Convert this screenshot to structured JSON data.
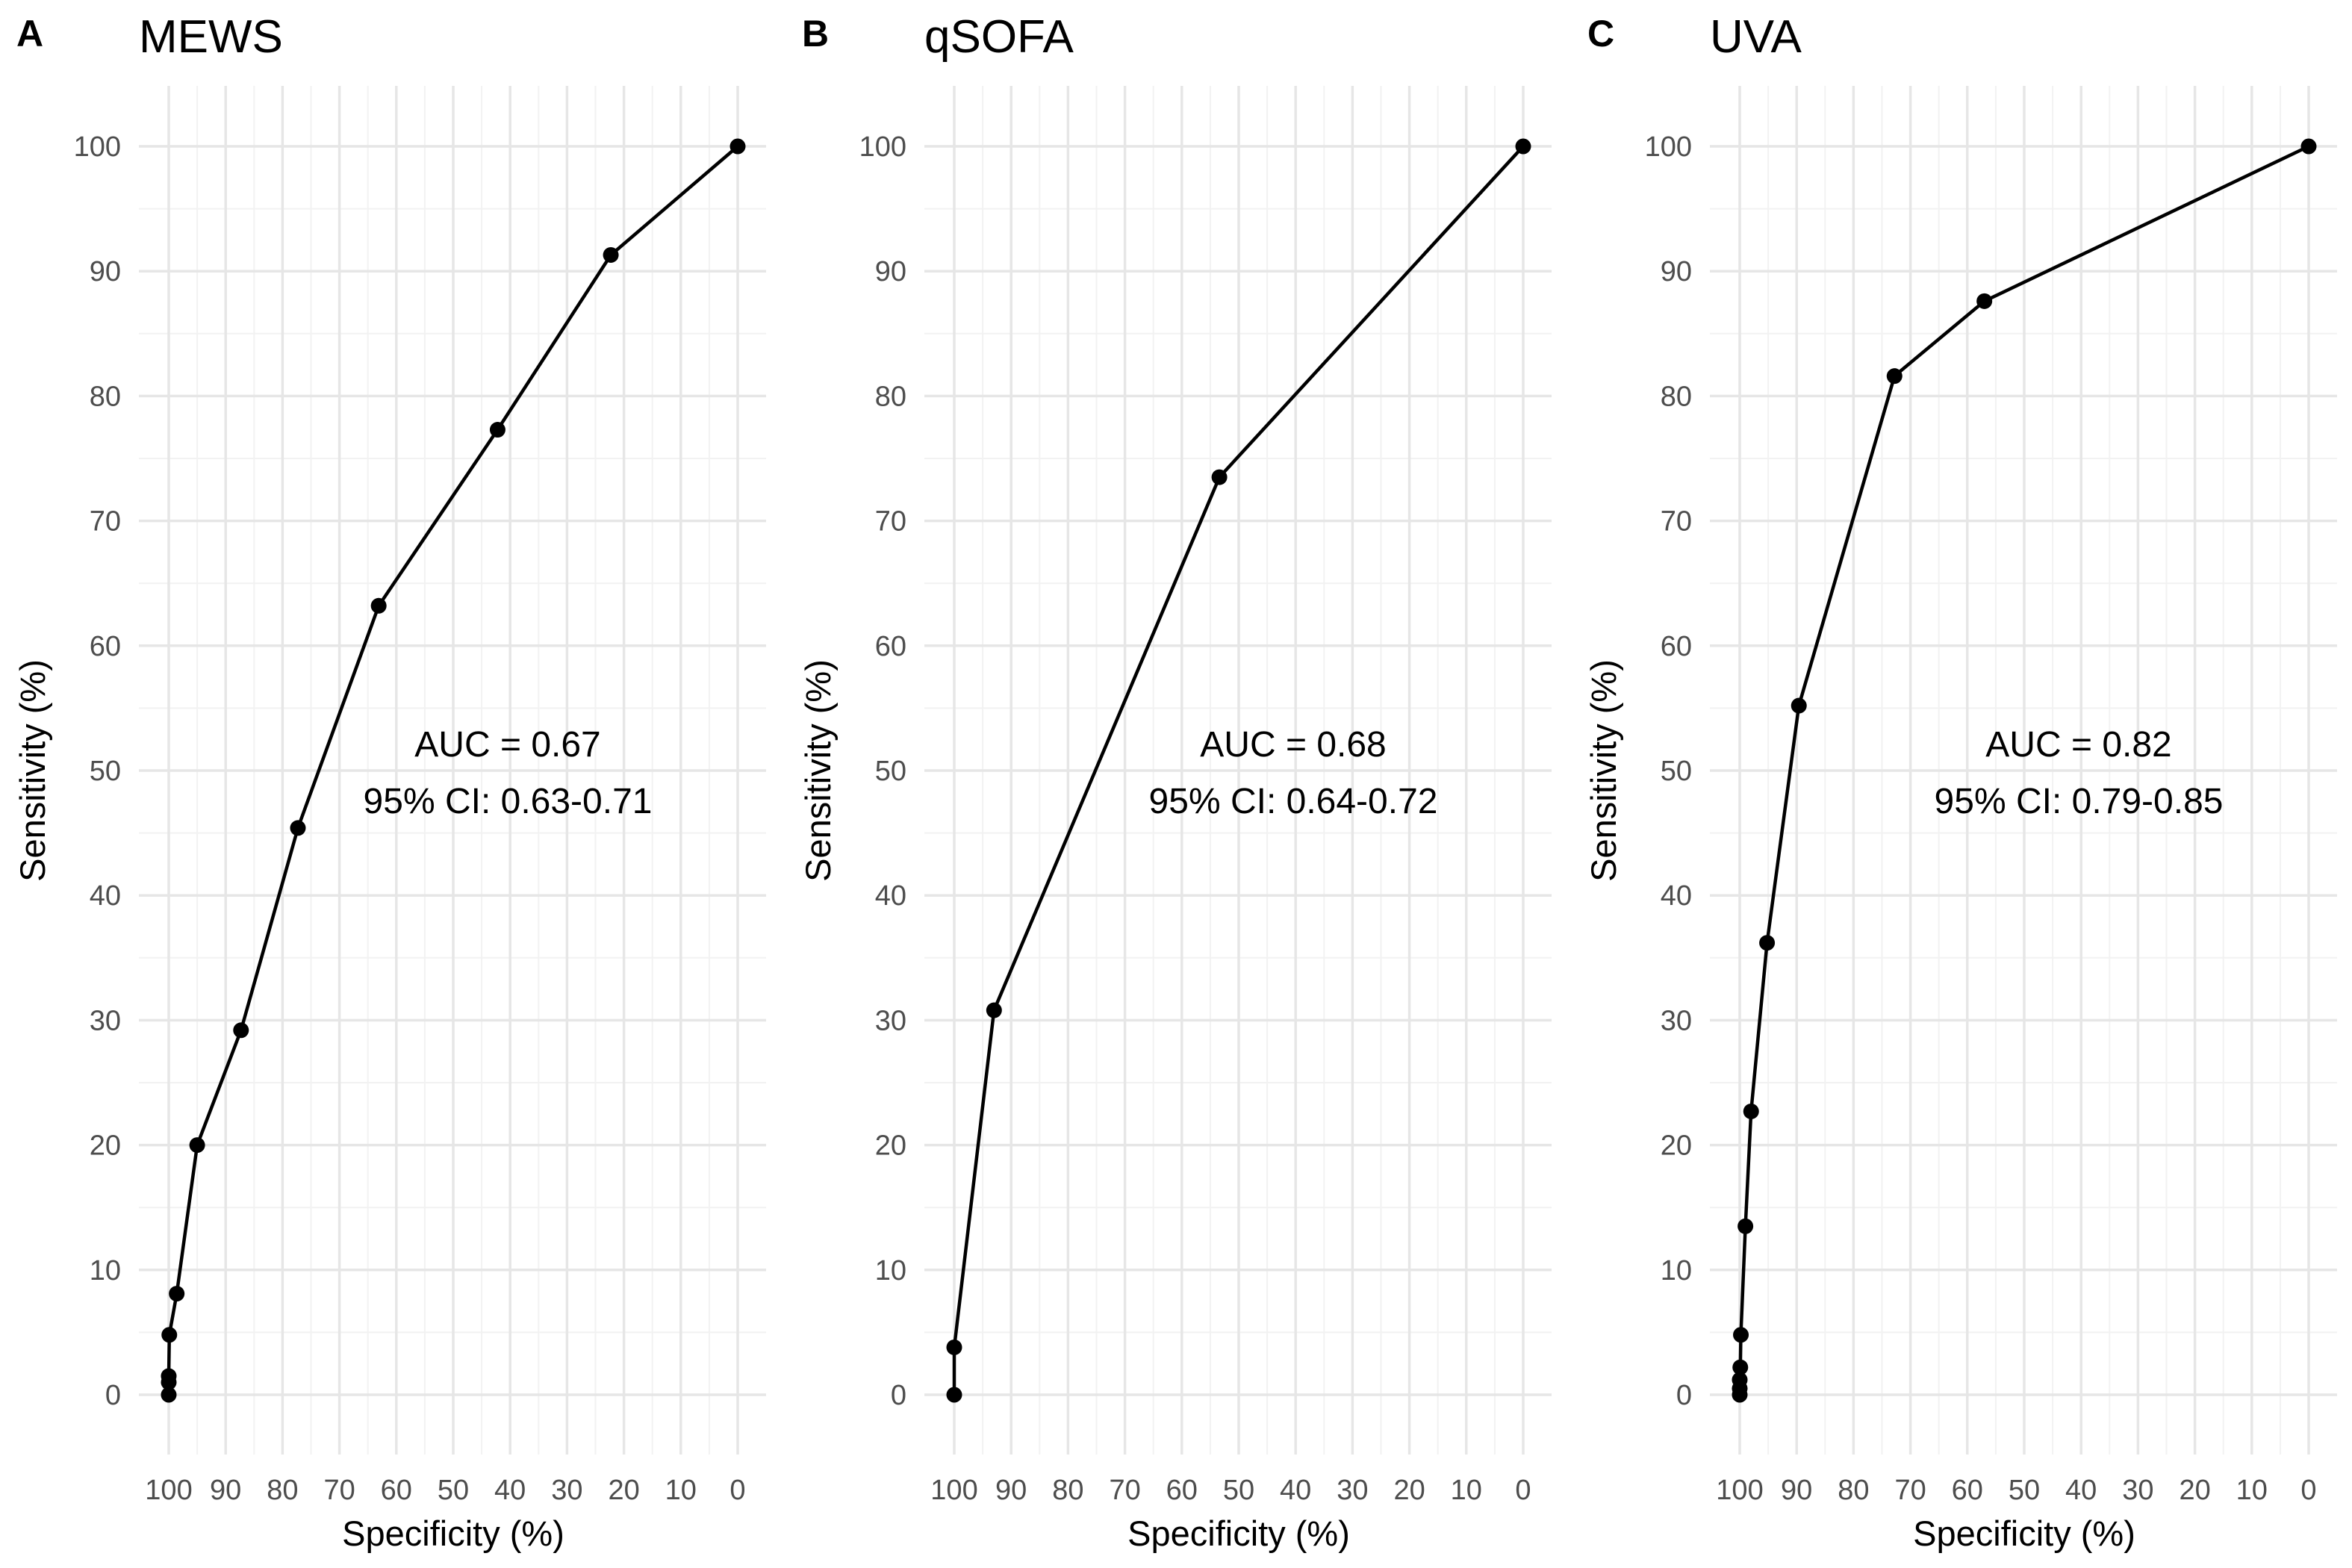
{
  "chart_data": [
    {
      "type": "line",
      "panel": "A",
      "title": "MEWS",
      "xlabel": "Specificity (%)",
      "ylabel": "Sensitivity (%)",
      "xlim": [
        100,
        0
      ],
      "ylim": [
        0,
        100
      ],
      "x_ticks": [
        100,
        90,
        80,
        70,
        60,
        50,
        40,
        30,
        20,
        10,
        0
      ],
      "y_ticks": [
        0,
        10,
        20,
        30,
        40,
        50,
        60,
        70,
        80,
        90,
        100
      ],
      "grid": true,
      "annotation": [
        "AUC = 0.67",
        "95% CI: 0.63-0.71"
      ],
      "points": [
        {
          "x": 100,
          "y": 0
        },
        {
          "x": 100,
          "y": 1
        },
        {
          "x": 100,
          "y": 1.5
        },
        {
          "x": 99.9,
          "y": 4.8
        },
        {
          "x": 98.6,
          "y": 8.1
        },
        {
          "x": 95,
          "y": 20
        },
        {
          "x": 87.3,
          "y": 29.2
        },
        {
          "x": 77.3,
          "y": 45.4
        },
        {
          "x": 63.1,
          "y": 63.2
        },
        {
          "x": 42.2,
          "y": 77.3
        },
        {
          "x": 22.3,
          "y": 91.3
        },
        {
          "x": 0,
          "y": 100
        }
      ]
    },
    {
      "type": "line",
      "panel": "B",
      "title": "qSOFA",
      "xlabel": "Specificity (%)",
      "ylabel": "Sensitivity (%)",
      "xlim": [
        100,
        0
      ],
      "ylim": [
        0,
        100
      ],
      "x_ticks": [
        100,
        90,
        80,
        70,
        60,
        50,
        40,
        30,
        20,
        10,
        0
      ],
      "y_ticks": [
        0,
        10,
        20,
        30,
        40,
        50,
        60,
        70,
        80,
        90,
        100
      ],
      "grid": true,
      "annotation": [
        "AUC = 0.68",
        "95% CI: 0.64-0.72"
      ],
      "points": [
        {
          "x": 100,
          "y": 0
        },
        {
          "x": 100,
          "y": 3.8
        },
        {
          "x": 93,
          "y": 30.8
        },
        {
          "x": 53.4,
          "y": 73.5
        },
        {
          "x": 0,
          "y": 100
        }
      ]
    },
    {
      "type": "line",
      "panel": "C",
      "title": "UVA",
      "xlabel": "Specificity (%)",
      "ylabel": "Sensitivity (%)",
      "xlim": [
        100,
        0
      ],
      "ylim": [
        0,
        100
      ],
      "x_ticks": [
        100,
        90,
        80,
        70,
        60,
        50,
        40,
        30,
        20,
        10,
        0
      ],
      "y_ticks": [
        0,
        10,
        20,
        30,
        40,
        50,
        60,
        70,
        80,
        90,
        100
      ],
      "grid": true,
      "annotation": [
        "AUC = 0.82",
        "95% CI: 0.79-0.85"
      ],
      "points": [
        {
          "x": 100,
          "y": 0
        },
        {
          "x": 100,
          "y": 0.5
        },
        {
          "x": 100,
          "y": 1.2
        },
        {
          "x": 99.9,
          "y": 2.2
        },
        {
          "x": 99.8,
          "y": 4.8
        },
        {
          "x": 99,
          "y": 13.5
        },
        {
          "x": 98,
          "y": 22.7
        },
        {
          "x": 95.2,
          "y": 36.2
        },
        {
          "x": 89.6,
          "y": 55.2
        },
        {
          "x": 72.8,
          "y": 81.6
        },
        {
          "x": 57,
          "y": 87.6
        },
        {
          "x": 0,
          "y": 100
        }
      ]
    }
  ]
}
